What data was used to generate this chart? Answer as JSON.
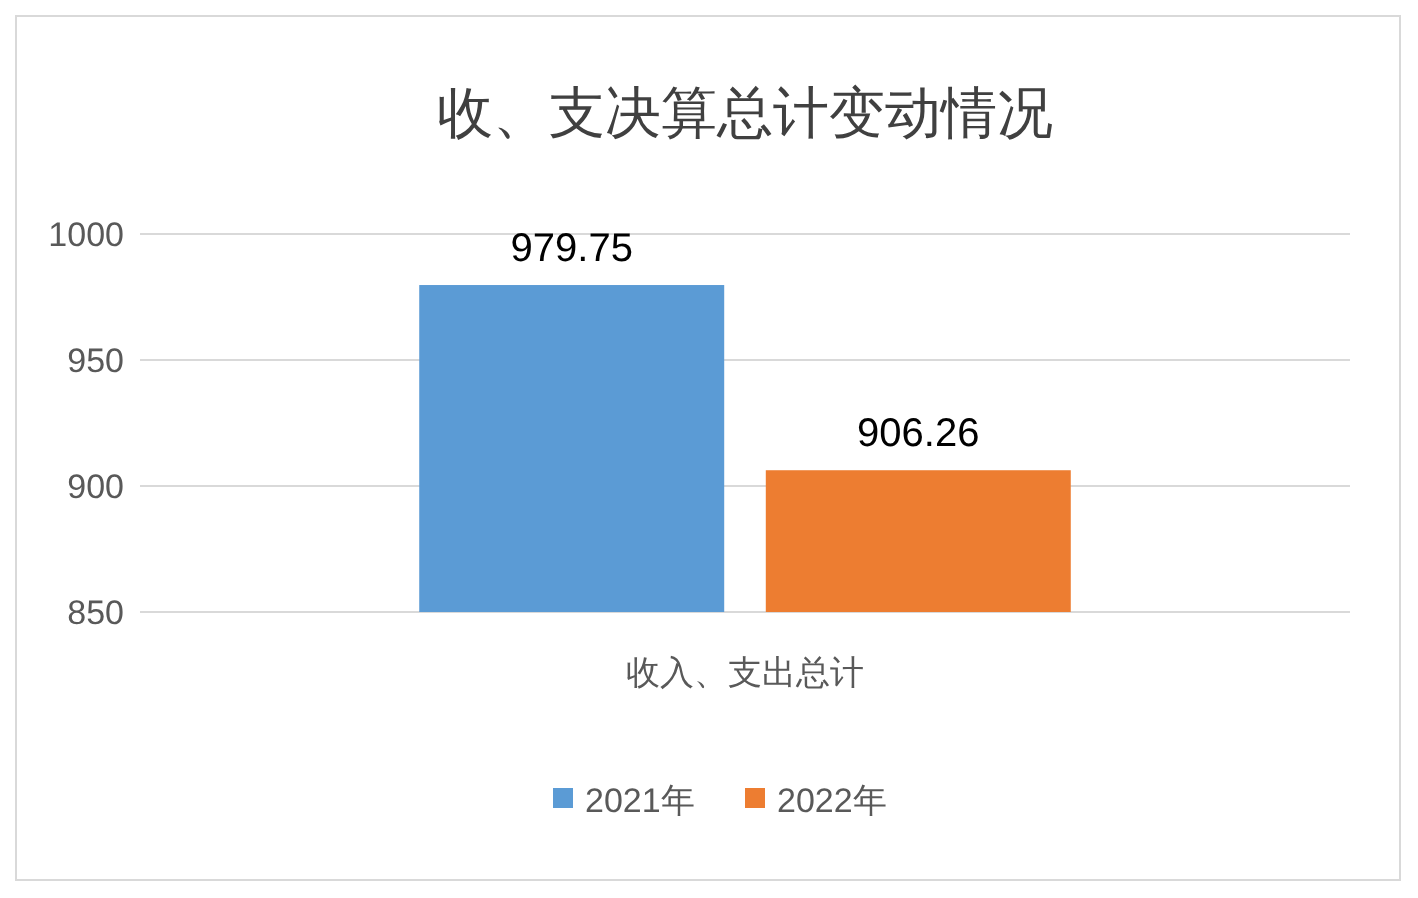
{
  "chart_data": {
    "type": "bar",
    "title": "收、支决算总计变动情况",
    "categories": [
      "收入、支出总计"
    ],
    "series": [
      {
        "name": "2021年",
        "color": "#5b9bd5",
        "values": [
          979.75
        ]
      },
      {
        "name": "2022年",
        "color": "#ed7d31",
        "values": [
          906.26
        ]
      }
    ],
    "ylim": [
      850,
      1000
    ],
    "yticks": [
      850,
      900,
      950,
      1000
    ],
    "grid": "y",
    "legend": "bottom",
    "data_labels": true
  }
}
